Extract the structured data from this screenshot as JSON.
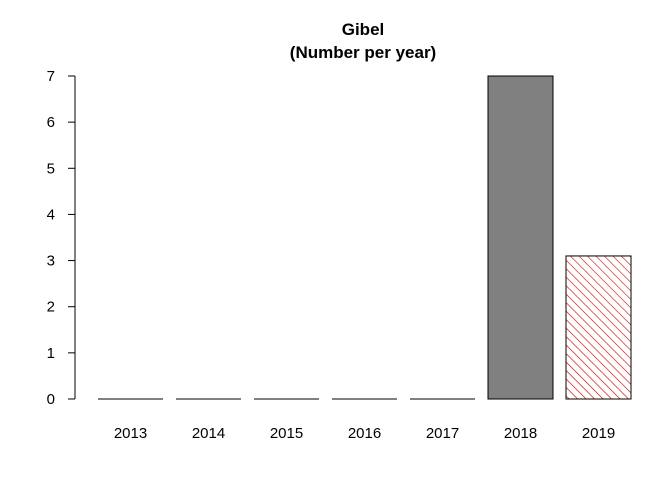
{
  "chart_data": {
    "type": "bar",
    "title": "Gibel",
    "subtitle": "(Number per year)",
    "xlabel": "",
    "ylabel": "",
    "categories": [
      "2013",
      "2014",
      "2015",
      "2016",
      "2017",
      "2018",
      "2019"
    ],
    "values": [
      0,
      0,
      0,
      0,
      0,
      7,
      3.1
    ],
    "ylim": [
      0,
      7
    ],
    "yticks": [
      0,
      1,
      2,
      3,
      4,
      5,
      6,
      7
    ],
    "grid": false,
    "legend": "none",
    "bar_styles": [
      "solid",
      "solid",
      "solid",
      "solid",
      "solid",
      "solid",
      "hatched"
    ],
    "colors": {
      "solid_fill": "#808080",
      "hatch_color": "#cc0000",
      "outline": "#000000",
      "axis": "#000000"
    }
  }
}
